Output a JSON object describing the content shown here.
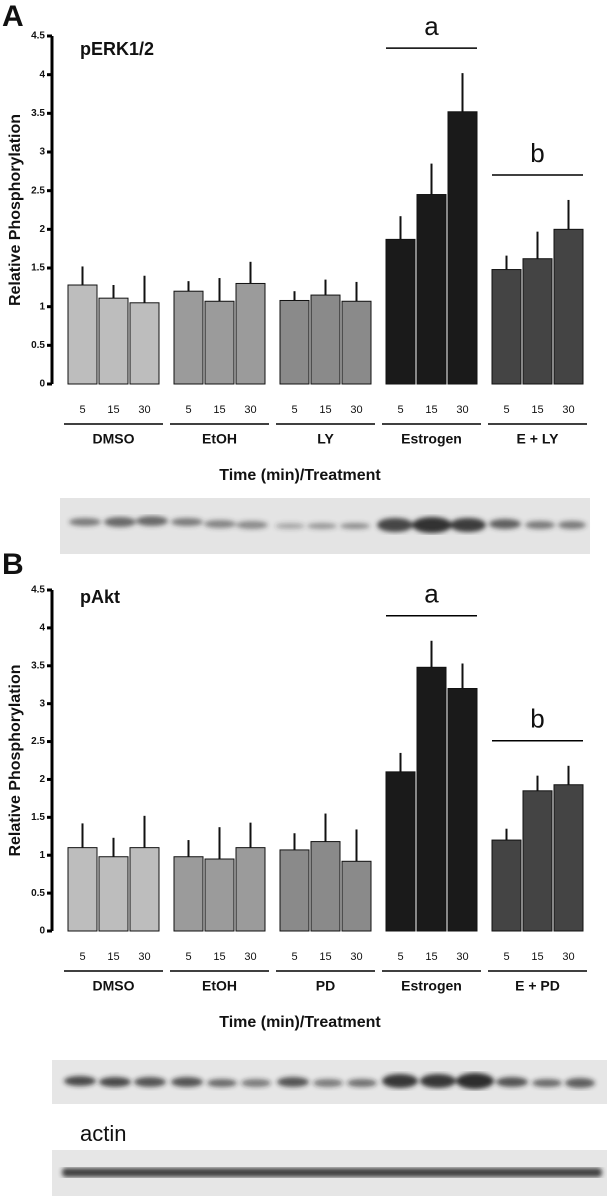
{
  "chart_data": [
    {
      "type": "bar",
      "panel": "A",
      "title": "pERK1/2",
      "ylabel": "Relative Phosphorylation",
      "xlabel": "Time (min)/Treatment",
      "groups": [
        "DMSO",
        "EtOH",
        "LY",
        "Estrogen",
        "E + LY"
      ],
      "categories": [
        "5",
        "15",
        "30",
        "5",
        "15",
        "30",
        "5",
        "15",
        "30",
        "5",
        "15",
        "30",
        "5",
        "15",
        "30"
      ],
      "values": [
        1.28,
        1.11,
        1.05,
        1.2,
        1.07,
        1.3,
        1.08,
        1.15,
        1.07,
        1.87,
        2.45,
        3.52,
        1.48,
        1.62,
        2.0
      ],
      "errors": [
        0.24,
        0.17,
        0.35,
        0.13,
        0.3,
        0.28,
        0.12,
        0.2,
        0.25,
        0.3,
        0.4,
        0.5,
        0.18,
        0.35,
        0.38
      ],
      "colors": [
        "#bdbdbd",
        "#9b9b9b",
        "#8a8a8a",
        "#1a1a1a",
        "#444444"
      ],
      "annotations": [
        {
          "text": "a",
          "group": 3
        },
        {
          "text": "b",
          "group": 4
        }
      ],
      "ylim": [
        0,
        4.5
      ],
      "yticks": [
        0,
        0.5,
        1,
        1.5,
        2,
        2.5,
        3,
        3.5,
        4,
        4.5
      ]
    },
    {
      "type": "bar",
      "panel": "B",
      "title": "pAkt",
      "ylabel": "Relative Phosphorylation",
      "xlabel": "Time (min)/Treatment",
      "groups": [
        "DMSO",
        "EtOH",
        "PD",
        "Estrogen",
        "E + PD"
      ],
      "categories": [
        "5",
        "15",
        "30",
        "5",
        "15",
        "30",
        "5",
        "15",
        "30",
        "5",
        "15",
        "30",
        "5",
        "15",
        "30"
      ],
      "values": [
        1.1,
        0.98,
        1.1,
        0.98,
        0.95,
        1.1,
        1.07,
        1.18,
        0.92,
        2.1,
        3.48,
        3.2,
        1.2,
        1.85,
        1.93
      ],
      "errors": [
        0.32,
        0.25,
        0.42,
        0.22,
        0.42,
        0.33,
        0.22,
        0.37,
        0.42,
        0.25,
        0.35,
        0.33,
        0.15,
        0.2,
        0.25
      ],
      "colors": [
        "#bdbdbd",
        "#9b9b9b",
        "#8a8a8a",
        "#1a1a1a",
        "#444444"
      ],
      "annotations": [
        {
          "text": "a",
          "group": 3
        },
        {
          "text": "b",
          "group": 4
        }
      ],
      "ylim": [
        0,
        4.5
      ],
      "yticks": [
        0,
        0.5,
        1,
        1.5,
        2,
        2.5,
        3,
        3.5,
        4,
        4.5
      ]
    }
  ],
  "blot_label": "actin"
}
